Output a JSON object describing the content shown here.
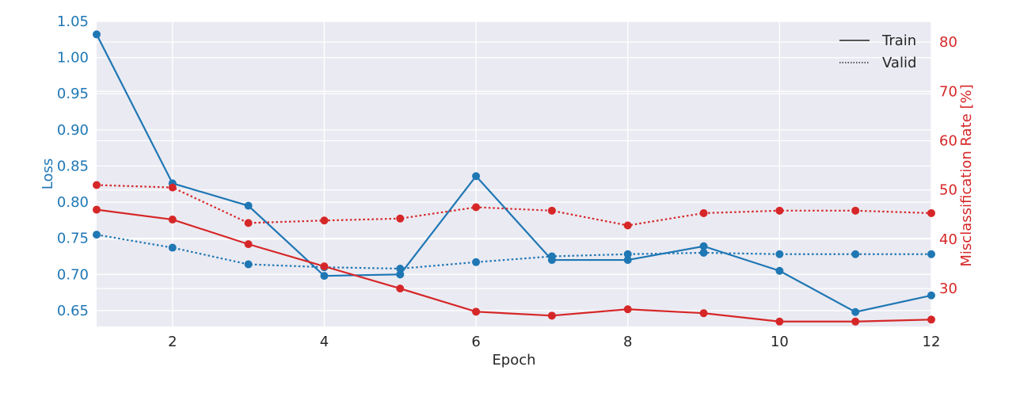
{
  "chart_data": {
    "type": "line",
    "title": "",
    "xlabel": "Epoch",
    "ylabel_left": "Loss",
    "ylabel_right": "Misclassification Rate [%]",
    "x": [
      1,
      2,
      3,
      4,
      5,
      6,
      7,
      8,
      9,
      10,
      11,
      12
    ],
    "xlim": [
      1,
      12
    ],
    "xticks": [
      2,
      4,
      6,
      8,
      10,
      12
    ],
    "ylim_left": [
      0.628,
      1.05
    ],
    "yticks_left": [
      "0.65",
      "0.70",
      "0.75",
      "0.80",
      "0.85",
      "0.90",
      "0.95",
      "1.00",
      "1.05"
    ],
    "ylim_right": [
      22.3,
      84.2
    ],
    "yticks_right": [
      "30",
      "40",
      "50",
      "60",
      "70",
      "80"
    ],
    "grid": true,
    "legend_position": "top-right",
    "legend": [
      {
        "label": "Train",
        "style": "solid"
      },
      {
        "label": "Valid",
        "style": "dotted"
      }
    ],
    "colors": {
      "loss": "#1f77b4",
      "misclassification": "#d62728",
      "background": "#eaeaf2",
      "grid": "#ffffff"
    },
    "series": [
      {
        "key": "train_loss",
        "axis": "left",
        "style": "solid",
        "color": "#1f77b4",
        "values": [
          1.032,
          0.826,
          0.795,
          0.698,
          0.7,
          0.836,
          0.72,
          0.72,
          0.739,
          0.705,
          0.648,
          0.671
        ]
      },
      {
        "key": "valid_loss",
        "axis": "left",
        "style": "dotted",
        "color": "#1f77b4",
        "values": [
          0.755,
          0.737,
          0.714,
          0.71,
          0.708,
          0.717,
          0.725,
          0.728,
          0.73,
          0.728,
          0.728,
          0.728
        ]
      },
      {
        "key": "train_misclassification",
        "axis": "right",
        "style": "solid",
        "color": "#d62728",
        "values": [
          46.0,
          44.0,
          39.0,
          34.5,
          30.0,
          25.3,
          24.5,
          25.8,
          25.0,
          23.3,
          23.3,
          23.7
        ]
      },
      {
        "key": "valid_misclassification",
        "axis": "right",
        "style": "dotted",
        "color": "#d62728",
        "values": [
          51.0,
          50.5,
          43.3,
          43.8,
          44.2,
          46.5,
          45.8,
          42.8,
          45.3,
          45.8,
          45.8,
          45.3
        ]
      }
    ]
  }
}
